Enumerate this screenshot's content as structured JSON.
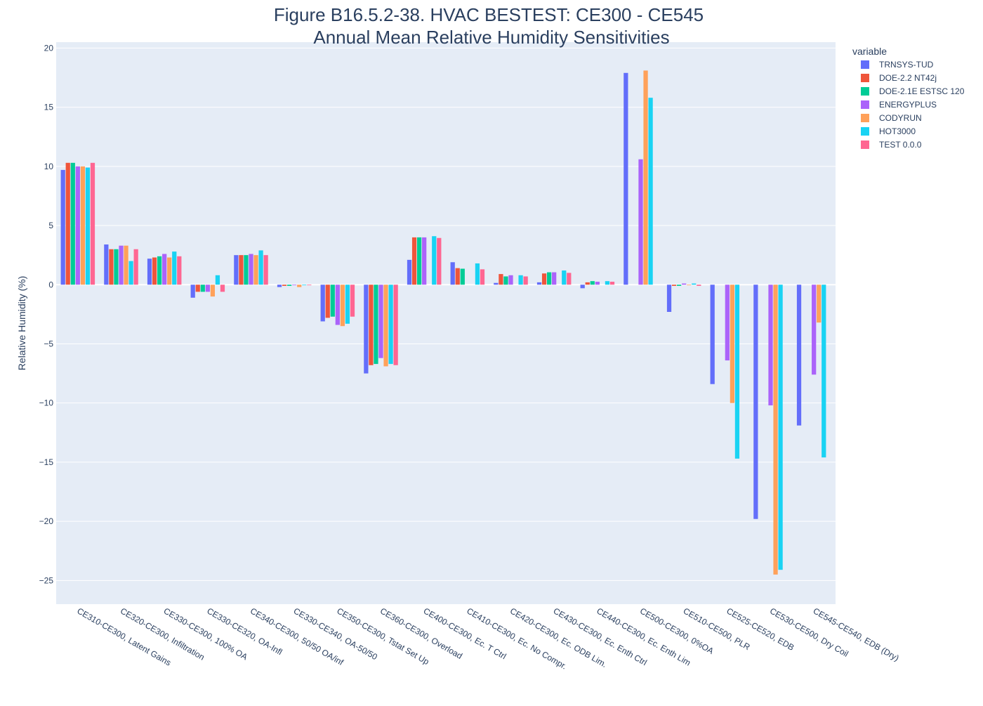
{
  "chart_data": {
    "type": "bar",
    "title": "Figure B16.5.2-38. HVAC BESTEST: CE300 - CE545",
    "subtitle": "Annual Mean Relative Humidity Sensitivities",
    "xlabel": "",
    "ylabel": "Relative Humidity (%)",
    "ylim": [
      -27,
      20.5
    ],
    "yticks": [
      20,
      15,
      10,
      5,
      0,
      -5,
      -10,
      -15,
      -20,
      -25
    ],
    "ytick_labels": [
      "20",
      "15",
      "10",
      "5",
      "0",
      "−5",
      "−10",
      "−15",
      "−20",
      "−25"
    ],
    "grid": true,
    "legend_title": "variable",
    "legend_position": "top-right",
    "categories": [
      "CE310-CE300, Latent Gains",
      "CE320-CE300, Infiltration",
      "CE330-CE300, 100% OA",
      "CE330-CE320, OA-Infl",
      "CE340-CE300, 50/50 OA/inf",
      "CE330-CE340, OA-50/50",
      "CE350-CE300, Tstat Set Up",
      "CE360-CE300, Overload",
      "CE400-CE300, Ec. T Ctrl",
      "CE410-CE300, Ec. No Compr.",
      "CE420-CE300, Ec. ODB Lim.",
      "CE430-CE300, Ec. Enth Ctrl",
      "CE440-CE300, Ec. Enth Lim",
      "CE500-CE300, 0%OA",
      "CE510-CE500, PLR",
      "CE525-CE520, EDB",
      "CE530-CE500, Dry Coil",
      "CE545-CE540, EDB (Dry)"
    ],
    "series": [
      {
        "name": "TRNSYS-TUD",
        "color": "#636efa",
        "values": [
          9.7,
          3.4,
          2.2,
          -1.1,
          2.5,
          -0.2,
          -3.1,
          -7.5,
          2.1,
          1.9,
          0.15,
          0.2,
          -0.3,
          17.9,
          -2.3,
          -8.4,
          -19.8,
          -11.9
        ]
      },
      {
        "name": "DOE-2.2 NT42j",
        "color": "#EF553B",
        "values": [
          10.3,
          3.0,
          2.3,
          -0.6,
          2.5,
          -0.1,
          -2.8,
          -6.8,
          4.0,
          1.4,
          0.9,
          0.95,
          0.2,
          null,
          -0.1,
          null,
          null,
          null
        ]
      },
      {
        "name": "DOE-2.1E ESTSC 120",
        "color": "#00cc96",
        "values": [
          10.3,
          3.0,
          2.4,
          -0.6,
          2.5,
          -0.1,
          -2.7,
          -6.7,
          4.0,
          1.35,
          0.7,
          1.05,
          0.3,
          null,
          -0.1,
          null,
          null,
          null
        ]
      },
      {
        "name": "ENERGYPLUS",
        "color": "#ab63fa",
        "values": [
          10.0,
          3.3,
          2.6,
          -0.6,
          2.6,
          -0.05,
          -3.4,
          -6.2,
          4.0,
          null,
          0.8,
          1.05,
          0.25,
          10.6,
          0.1,
          -6.4,
          -10.2,
          -7.6
        ]
      },
      {
        "name": "CODYRUN",
        "color": "#FFA15A",
        "values": [
          10.0,
          3.3,
          2.3,
          -1.0,
          2.5,
          -0.2,
          -3.5,
          -6.9,
          null,
          null,
          null,
          null,
          null,
          18.1,
          -0.05,
          -10.0,
          -24.5,
          -3.2
        ]
      },
      {
        "name": "HOT3000",
        "color": "#19d3f3",
        "values": [
          9.9,
          2.0,
          2.8,
          0.8,
          2.9,
          -0.05,
          -3.3,
          -6.7,
          4.1,
          1.8,
          0.8,
          1.2,
          0.3,
          15.8,
          0.1,
          -14.7,
          -24.1,
          -14.6
        ]
      },
      {
        "name": "TEST 0.0.0",
        "color": "#FF6692",
        "values": [
          10.3,
          3.0,
          2.4,
          -0.6,
          2.5,
          -0.05,
          -2.7,
          -6.8,
          3.95,
          1.3,
          0.7,
          1.0,
          0.25,
          null,
          -0.1,
          null,
          null,
          null
        ]
      }
    ]
  }
}
